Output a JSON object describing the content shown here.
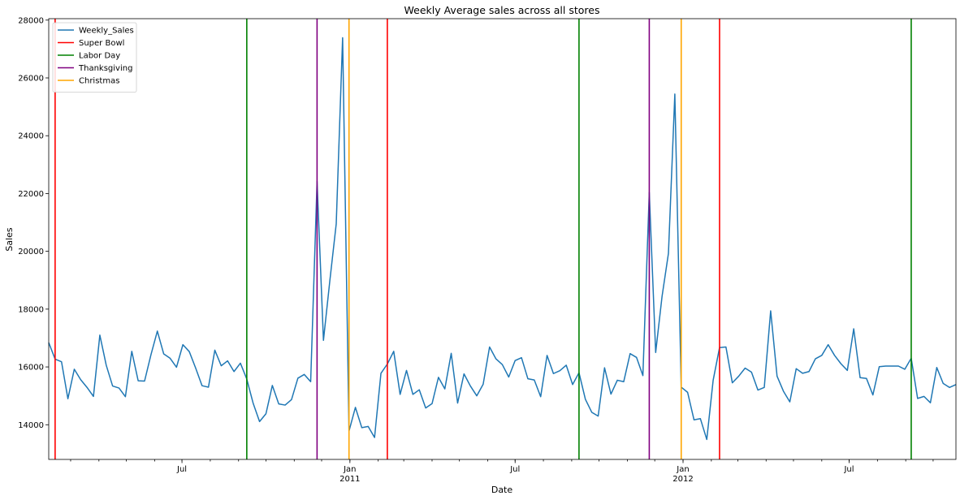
{
  "chart_data": {
    "type": "line",
    "title": "Weekly Average sales across all stores",
    "xlabel": "Date",
    "ylabel": "Sales",
    "xlim": [
      "2010-02-05",
      "2012-10-26"
    ],
    "ylim": [
      12800,
      28050
    ],
    "yticks": [
      14000,
      16000,
      18000,
      20000,
      22000,
      24000,
      26000,
      28000
    ],
    "xticks": [
      {
        "date": "2010-07-01",
        "label": "Jul",
        "sublabel": ""
      },
      {
        "date": "2011-01-01",
        "label": "Jan",
        "sublabel": "2011"
      },
      {
        "date": "2011-07-01",
        "label": "Jul",
        "sublabel": ""
      },
      {
        "date": "2012-01-01",
        "label": "Jan",
        "sublabel": "2012"
      },
      {
        "date": "2012-07-01",
        "label": "Jul",
        "sublabel": ""
      }
    ],
    "grid": false,
    "legend_position": "top-left",
    "series": [
      {
        "name": "Weekly_Sales",
        "color": "#1f77b4",
        "start_date": "2010-02-05",
        "interval_days": 7,
        "values": [
          16840,
          16270,
          16180,
          14900,
          15920,
          15560,
          15290,
          14980,
          17100,
          16060,
          15340,
          15270,
          14970,
          16540,
          15520,
          15510,
          16420,
          17240,
          16450,
          16300,
          15990,
          16770,
          16530,
          15960,
          15350,
          15300,
          16580,
          16040,
          16210,
          15840,
          16130,
          15580,
          14740,
          14110,
          14380,
          15360,
          14720,
          14680,
          14870,
          15610,
          15740,
          15490,
          22420,
          16920,
          18980,
          20950,
          27390,
          13780,
          14600,
          13900,
          13940,
          13560,
          15780,
          16100,
          16540,
          15050,
          15880,
          15050,
          15210,
          14580,
          14730,
          15640,
          15240,
          16470,
          14750,
          15760,
          15340,
          15000,
          15400,
          16690,
          16280,
          16080,
          15650,
          16220,
          16320,
          15590,
          15550,
          14970,
          16400,
          15770,
          15870,
          16060,
          15390,
          15800,
          14880,
          14430,
          14300,
          15970,
          15060,
          15540,
          15490,
          16460,
          16330,
          15700,
          22040,
          16500,
          18440,
          19930,
          25440,
          15300,
          15120,
          14170,
          14210,
          13490,
          15540,
          16670,
          16690,
          15450,
          15680,
          15960,
          15820,
          15200,
          15290,
          17940,
          15680,
          15160,
          14790,
          15940,
          15780,
          15840,
          16280,
          16400,
          16770,
          16400,
          16110,
          15880,
          17320,
          15630,
          15600,
          15030,
          16010,
          16030,
          16030,
          16030,
          15920,
          16300,
          14910,
          14980,
          14760,
          15980,
          15430,
          15290,
          15390
        ]
      }
    ],
    "vlines": [
      {
        "name": "Super Bowl",
        "color": "#ff0000",
        "dates": [
          "2010-02-12",
          "2011-02-11",
          "2012-02-10"
        ]
      },
      {
        "name": "Labor Day",
        "color": "#008000",
        "dates": [
          "2010-09-10",
          "2011-09-09",
          "2012-09-07"
        ]
      },
      {
        "name": "Thanksgiving",
        "color": "#800080",
        "dates": [
          "2010-11-26",
          "2011-11-25"
        ]
      },
      {
        "name": "Christmas",
        "color": "#ffa500",
        "dates": [
          "2010-12-31",
          "2011-12-30"
        ]
      }
    ]
  }
}
